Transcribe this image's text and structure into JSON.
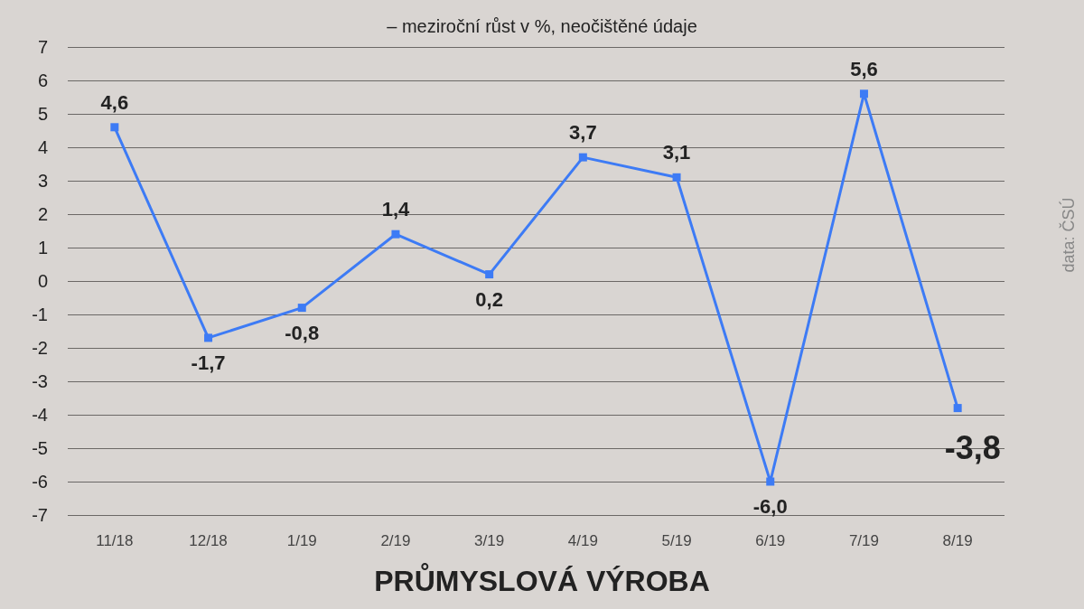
{
  "chart_data": {
    "type": "line",
    "title": "PRŮMYSLOVÁ VÝROBA",
    "subtitle": "– meziroční růst v %, neočištěné údaje",
    "annotations": [
      "data: ČSÚ"
    ],
    "categories": [
      "11/18",
      "12/18",
      "1/19",
      "2/19",
      "3/19",
      "4/19",
      "5/19",
      "6/19",
      "7/19",
      "8/19"
    ],
    "series": [
      {
        "color": "#3d7bf5",
        "values": [
          4.6,
          -1.7,
          -0.8,
          1.4,
          0.2,
          3.7,
          3.1,
          -6.0,
          5.6,
          -3.8
        ],
        "value_labels": [
          "4,6",
          "-1,7",
          "-0,8",
          "1,4",
          "0,2",
          "3,7",
          "3,1",
          "-6,0",
          "5,6",
          "-3,8"
        ]
      }
    ],
    "ylim": [
      -7,
      7
    ],
    "yticks": [
      -7,
      -6,
      -5,
      -4,
      -3,
      -2,
      -1,
      0,
      1,
      2,
      3,
      4,
      5,
      6,
      7
    ],
    "grid": "y",
    "marker": "square",
    "line_style": "solid"
  }
}
